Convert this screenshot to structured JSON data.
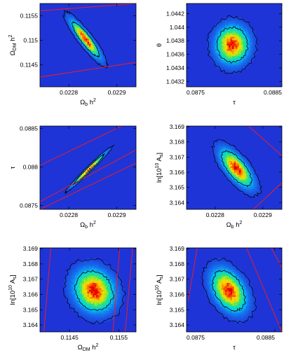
{
  "figure": {
    "colors": {
      "background": "#1f34d6",
      "contour": "#000000",
      "band_line": "#ff1a1a"
    }
  },
  "chart_data": [
    {
      "type": "heatmap",
      "xlabel": "Ω_b h²",
      "xlabel_main": "Ω",
      "xlabel_sub": "b",
      "xlabel_tail": " h",
      "xlabel_sup": "2",
      "ylabel": "Ω_DM h²",
      "ylabel_main": "Ω",
      "ylabel_sub": "DM",
      "ylabel_tail": " h",
      "ylabel_sup": "2",
      "xlim": [
        0.02274,
        0.02294
      ],
      "ylim": [
        0.11405,
        0.11575
      ],
      "xticks": [
        0.0228,
        0.0229
      ],
      "xtick_labels": [
        "0.0228",
        "0.0229"
      ],
      "yticks": [
        0.1145,
        0.115,
        0.1155
      ],
      "ytick_labels": [
        "0.1145",
        "0.115",
        "0.1155"
      ],
      "density_center": [
        0.022835,
        0.11502
      ],
      "density_sigma": [
        1.85e-05,
        0.00023
      ],
      "correlation": -0.9,
      "band_lines": [
        [
          [
            0.02274,
            0.1156
          ],
          [
            0.02294,
            0.11575
          ]
        ],
        [
          [
            0.02274,
            0.11425
          ],
          [
            0.02294,
            0.11455
          ]
        ]
      ]
    },
    {
      "type": "heatmap",
      "xlabel": "τ",
      "xlabel_main": "τ",
      "xlabel_sub": "",
      "xlabel_tail": "",
      "xlabel_sup": "",
      "ylabel": "θ",
      "ylabel_main": "θ",
      "ylabel_sub": "",
      "ylabel_tail": "",
      "ylabel_sup": "",
      "xlim": [
        0.0875,
        0.0885
      ],
      "ylim": [
        1.04312,
        1.04435
      ],
      "xticks": [
        0.0875,
        0.0885
      ],
      "xtick_labels": [
        "0.0875",
        "0.0885"
      ],
      "yticks": [
        1.0432,
        1.0434,
        1.0436,
        1.0438,
        1.044,
        1.0442
      ],
      "ytick_labels": [
        "1.0432",
        "1.0434",
        "1.0436",
        "1.0438",
        "1.044",
        "1.0442"
      ],
      "density_center": [
        0.08798,
        1.04374
      ],
      "density_sigma": [
        0.000105,
        0.00017
      ],
      "correlation": 0.0,
      "band_lines": []
    },
    {
      "type": "heatmap",
      "xlabel": "Ω_b h²",
      "xlabel_main": "Ω",
      "xlabel_sub": "b",
      "xlabel_tail": " h",
      "xlabel_sup": "2",
      "ylabel": "τ",
      "ylabel_main": "τ",
      "ylabel_sub": "",
      "ylabel_tail": "",
      "ylabel_sup": "",
      "xlim": [
        0.02274,
        0.02294
      ],
      "ylim": [
        0.08745,
        0.08853
      ],
      "xticks": [
        0.0228,
        0.0229
      ],
      "xtick_labels": [
        "0.0228",
        "0.0229"
      ],
      "yticks": [
        0.0875,
        0.088,
        0.0885
      ],
      "ytick_labels": [
        "0.0875",
        "0.088",
        "0.0885"
      ],
      "density_center": [
        0.022842,
        0.08797
      ],
      "density_sigma": [
        2.05e-05,
        0.000125
      ],
      "correlation": 0.985,
      "band_lines": [
        [
          [
            0.02274,
            0.08802
          ],
          [
            0.02294,
            0.08862
          ]
        ],
        [
          [
            0.02274,
            0.08755
          ],
          [
            0.02294,
            0.08822
          ]
        ],
        [
          [
            0.02274,
            0.08745
          ],
          [
            0.02294,
            0.08805
          ]
        ]
      ]
    },
    {
      "type": "heatmap",
      "xlabel": "Ω_b h²",
      "xlabel_main": "Ω",
      "xlabel_sub": "b",
      "xlabel_tail": " h",
      "xlabel_sup": "2",
      "ylabel": "ln[10¹⁰ A_s]",
      "ylabel_main": "ln[10",
      "ylabel_sub": "",
      "ylabel_tail": " A",
      "ylabel_sup": "10",
      "ylabel_sub2": "s",
      "ylabel_end": "]",
      "xlim": [
        0.02274,
        0.02294
      ],
      "ylim": [
        3.16355,
        3.16905
      ],
      "xticks": [
        0.0228,
        0.0229
      ],
      "xtick_labels": [
        "0.0228",
        "0.0229"
      ],
      "yticks": [
        3.164,
        3.165,
        3.166,
        3.167,
        3.168,
        3.169
      ],
      "ytick_labels": [
        "3.164",
        "3.165",
        "3.166",
        "3.167",
        "3.168",
        "3.169"
      ],
      "density_center": [
        0.022845,
        3.16625
      ],
      "density_sigma": [
        2.05e-05,
        0.00075
      ],
      "correlation": -0.7,
      "band_lines": [
        [
          [
            0.02287,
            3.16905
          ],
          [
            0.02294,
            3.1671
          ]
        ],
        [
          [
            0.02288,
            3.16355
          ],
          [
            0.02294,
            3.1653
          ]
        ]
      ]
    },
    {
      "type": "heatmap",
      "xlabel": "Ω_DM h²",
      "xlabel_main": "Ω",
      "xlabel_sub": "DM",
      "xlabel_tail": " h",
      "xlabel_sup": "2",
      "ylabel": "ln[10¹⁰ A_s]",
      "ylabel_main": "ln[10",
      "ylabel_sub": "",
      "ylabel_tail": " A",
      "ylabel_sup": "10",
      "ylabel_sub2": "s",
      "ylabel_end": "]",
      "xlim": [
        0.1139,
        0.11585
      ],
      "ylim": [
        3.16355,
        3.16905
      ],
      "xticks": [
        0.1145,
        0.1155
      ],
      "xtick_labels": [
        "0.1145",
        "0.1155"
      ],
      "yticks": [
        3.164,
        3.165,
        3.166,
        3.167,
        3.168,
        3.169
      ],
      "ytick_labels": [
        "3.164",
        "3.165",
        "3.166",
        "3.167",
        "3.168",
        "3.169"
      ],
      "density_center": [
        0.115,
        3.16625
      ],
      "density_sigma": [
        0.00025,
        0.00085
      ],
      "correlation": -0.15,
      "band_lines": [
        [
          [
            0.11412,
            3.16905
          ],
          [
            0.11398,
            3.16355
          ]
        ],
        [
          [
            0.11552,
            3.16905
          ],
          [
            0.11538,
            3.16355
          ]
        ],
        [
          [
            0.11578,
            3.16905
          ],
          [
            0.11563,
            3.16355
          ]
        ]
      ]
    },
    {
      "type": "heatmap",
      "xlabel": "τ",
      "xlabel_main": "τ",
      "xlabel_sub": "",
      "xlabel_tail": "",
      "xlabel_sup": "",
      "ylabel": "ln[10¹⁰ A_s]",
      "ylabel_main": "ln[10",
      "ylabel_sub": "",
      "ylabel_tail": " A",
      "ylabel_sup": "10",
      "ylabel_sub2": "s",
      "ylabel_end": "]",
      "xlim": [
        0.0875,
        0.08858
      ],
      "ylim": [
        3.16355,
        3.16905
      ],
      "xticks": [
        0.0875,
        0.0885
      ],
      "xtick_labels": [
        "0.0875",
        "0.0885"
      ],
      "yticks": [
        3.164,
        3.165,
        3.166,
        3.167,
        3.168,
        3.169
      ],
      "ytick_labels": [
        "3.164",
        "3.165",
        "3.166",
        "3.167",
        "3.168",
        "3.169"
      ],
      "density_center": [
        0.08798,
        3.16625
      ],
      "density_sigma": [
        0.00012,
        0.00085
      ],
      "correlation": -0.4,
      "band_lines": [
        [
          [
            0.08762,
            3.16905
          ],
          [
            0.08752,
            3.1656
          ]
        ],
        [
          [
            0.08818,
            3.16905
          ],
          [
            0.08858,
            3.16355
          ]
        ],
        [
          [
            0.08846,
            3.16905
          ],
          [
            0.08858,
            3.16775
          ]
        ]
      ]
    }
  ]
}
